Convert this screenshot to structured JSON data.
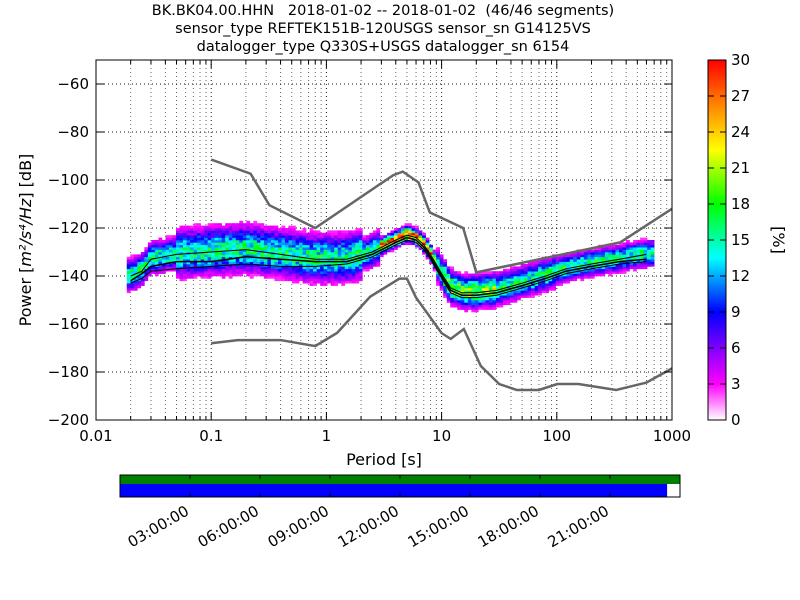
{
  "title_lines": [
    "BK.BK04.00.HHN   2018-01-02 -- 2018-01-02  (46/46 segments)",
    "sensor_type REFTEK151B-120USGS sensor_sn G14125VS",
    "datalogger_type Q330S+USGS datalogger_sn 6154"
  ],
  "chart_data": {
    "type": "heatmap",
    "xlabel": "Period [s]",
    "ylabel_prefix": "Power [",
    "ylabel_math": "m²/s⁴/Hz",
    "ylabel_suffix": "] [dB]",
    "x_scale": "log",
    "xlim": [
      0.01,
      1000
    ],
    "ylim": [
      -200,
      -50
    ],
    "x_ticks": [
      0.01,
      0.1,
      1,
      10,
      100,
      1000
    ],
    "x_tick_labels": [
      "0.01",
      "0.1",
      "1",
      "10",
      "100",
      "1000"
    ],
    "y_ticks": [
      -200,
      -180,
      -160,
      -140,
      -120,
      -100,
      -80,
      -60
    ],
    "y_tick_labels": [
      "−200",
      "−180",
      "−160",
      "−140",
      "−120",
      "−100",
      "−80",
      "−60"
    ],
    "grid": true,
    "colorbar": {
      "label": "[%]",
      "range": [
        0,
        30
      ],
      "ticks": [
        0,
        3,
        6,
        9,
        12,
        15,
        18,
        21,
        24,
        27,
        30
      ],
      "colors": [
        "#ffffff",
        "#ff00ff",
        "#0000ff",
        "#00ffff",
        "#00ff00",
        "#ffff00",
        "#ff0000"
      ]
    },
    "noise_models": [
      {
        "name": "NHNM",
        "x": [
          0.1,
          0.22,
          0.32,
          0.8,
          3.8,
          4.6,
          6.3,
          7.9,
          15.4,
          20,
          354.8,
          1000
        ],
        "y": [
          -91.5,
          -97.4,
          -110.5,
          -120,
          -98,
          -96.5,
          -101,
          -113.5,
          -120,
          -138.5,
          -126,
          -112
        ]
      },
      {
        "name": "NLNM",
        "x": [
          0.1,
          0.17,
          0.4,
          0.8,
          1.24,
          2.4,
          4.3,
          5,
          6,
          10,
          12,
          15.6,
          21.9,
          31.6,
          45,
          70,
          101,
          154,
          328,
          600,
          1000
        ],
        "y": [
          -168,
          -166.7,
          -166.7,
          -169.2,
          -163.7,
          -148.6,
          -141.1,
          -141.1,
          -149,
          -163.8,
          -166.2,
          -162.1,
          -177.5,
          -185,
          -187.5,
          -187.5,
          -185,
          -185,
          -187.5,
          -184.4,
          -178.5
        ]
      }
    ],
    "psd_lines": [
      {
        "name": "median",
        "x": [
          0.02,
          0.025,
          0.03,
          0.05,
          0.1,
          0.2,
          0.4,
          0.8,
          1.5,
          2.5,
          4,
          5,
          6,
          7,
          8,
          10,
          12,
          15,
          20,
          30,
          50,
          80,
          120,
          200,
          350,
          600
        ],
        "y": [
          -142,
          -139,
          -136,
          -134,
          -134,
          -132,
          -133,
          -134,
          -134,
          -131,
          -126,
          -124,
          -125,
          -128,
          -132,
          -140,
          -146,
          -148,
          -148,
          -147,
          -144,
          -141,
          -138,
          -136,
          -134,
          -133
        ]
      },
      {
        "name": "mode",
        "x": [
          0.02,
          0.025,
          0.03,
          0.05,
          0.1,
          0.2,
          0.4,
          0.8,
          1.5,
          2.5,
          4,
          5,
          6,
          7,
          8,
          10,
          12,
          15,
          20,
          30,
          50,
          80,
          120,
          200,
          350,
          600
        ],
        "y": [
          -140,
          -138,
          -133,
          -131,
          -130,
          -129,
          -131,
          -133,
          -133,
          -130,
          -125,
          -123,
          -124,
          -127,
          -131,
          -139,
          -145,
          -147,
          -147,
          -146,
          -143,
          -140,
          -137,
          -135,
          -133,
          -131
        ]
      },
      {
        "name": "mean",
        "x": [
          0.02,
          0.025,
          0.03,
          0.05,
          0.1,
          0.2,
          0.4,
          0.8,
          1.5,
          2.5,
          4,
          5,
          6,
          7,
          8,
          10,
          12,
          15,
          20,
          30,
          50,
          80,
          120,
          200,
          350,
          600
        ],
        "y": [
          -143,
          -141,
          -138,
          -137,
          -136,
          -135,
          -136,
          -136,
          -135,
          -132,
          -127,
          -125,
          -126,
          -129,
          -133,
          -141,
          -147,
          -149,
          -149,
          -148,
          -145,
          -142,
          -139,
          -137,
          -135,
          -134
        ]
      }
    ]
  },
  "timeline": {
    "tick_labels": [
      "03:00:00",
      "06:00:00",
      "09:00:00",
      "12:00:00",
      "15:00:00",
      "18:00:00",
      "21:00:00"
    ],
    "coverage_fraction": 0.977,
    "data_color": "#008000",
    "psd_color": "#0000ff"
  }
}
